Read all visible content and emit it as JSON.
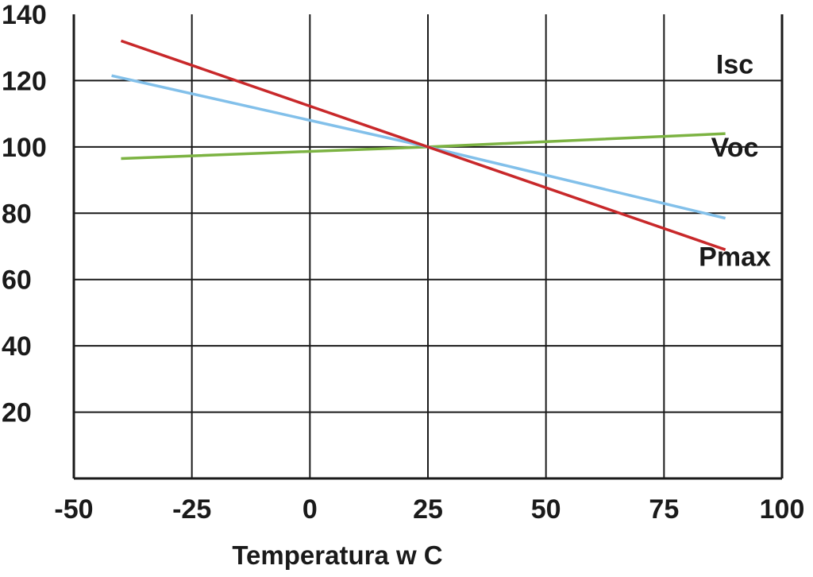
{
  "chart_data": {
    "type": "line",
    "title": "",
    "xlabel": "Temperatura w C",
    "ylabel": "",
    "xlim": [
      -50,
      100
    ],
    "ylim": [
      0,
      140
    ],
    "x_ticks": [
      -50,
      -25,
      0,
      25,
      50,
      75,
      100
    ],
    "x_tick_labels": [
      "-50",
      "-25",
      "0",
      "25",
      "50",
      "75",
      "100"
    ],
    "y_ticks": [
      20,
      40,
      60,
      80,
      100,
      120,
      140
    ],
    "y_tick_labels": [
      "20",
      "40",
      "60",
      "80",
      "100",
      "120",
      "140"
    ],
    "grid": true,
    "series": [
      {
        "name": "Isc",
        "color": "#7cb342",
        "x": [
          -40,
          25,
          88
        ],
        "y": [
          96.5,
          100,
          104
        ]
      },
      {
        "name": "Voc",
        "color": "#82c0ea",
        "x": [
          -42,
          25,
          88
        ],
        "y": [
          121.5,
          100,
          78.5
        ]
      },
      {
        "name": "Pmax",
        "color": "#c8282a",
        "x": [
          -40,
          25,
          88
        ],
        "y": [
          132,
          100,
          69
        ]
      }
    ],
    "series_labels": {
      "Isc": {
        "text": "Isc",
        "at": [
          90,
          125
        ]
      },
      "Voc": {
        "text": "Voc",
        "at": [
          90,
          100
        ]
      },
      "Pmax": {
        "text": "Pmax",
        "at": [
          90,
          67
        ]
      }
    }
  }
}
